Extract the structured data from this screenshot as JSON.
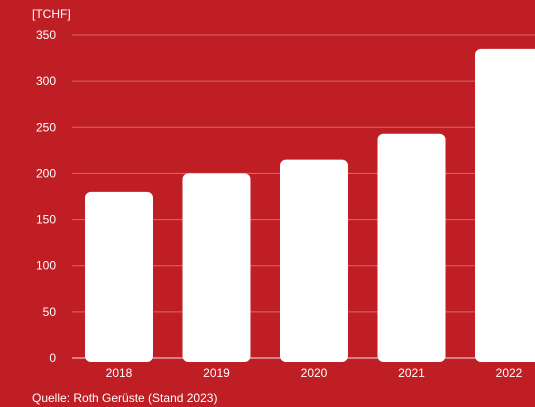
{
  "chart_data": {
    "type": "bar",
    "unit_label": "[TCHF]",
    "categories": [
      "2018",
      "2019",
      "2020",
      "2021",
      "2022"
    ],
    "values": [
      180,
      200,
      215,
      243,
      335
    ],
    "ylim": [
      0,
      350
    ],
    "yticks": [
      0,
      50,
      100,
      150,
      200,
      250,
      300,
      350
    ],
    "xlabel": "",
    "ylabel": "",
    "grid": true,
    "source": "Quelle: Roth Gerüste (Stand 2023)"
  },
  "colors": {
    "background": "#be1e24",
    "bar": "#ffffff",
    "text": "#ffffff"
  }
}
